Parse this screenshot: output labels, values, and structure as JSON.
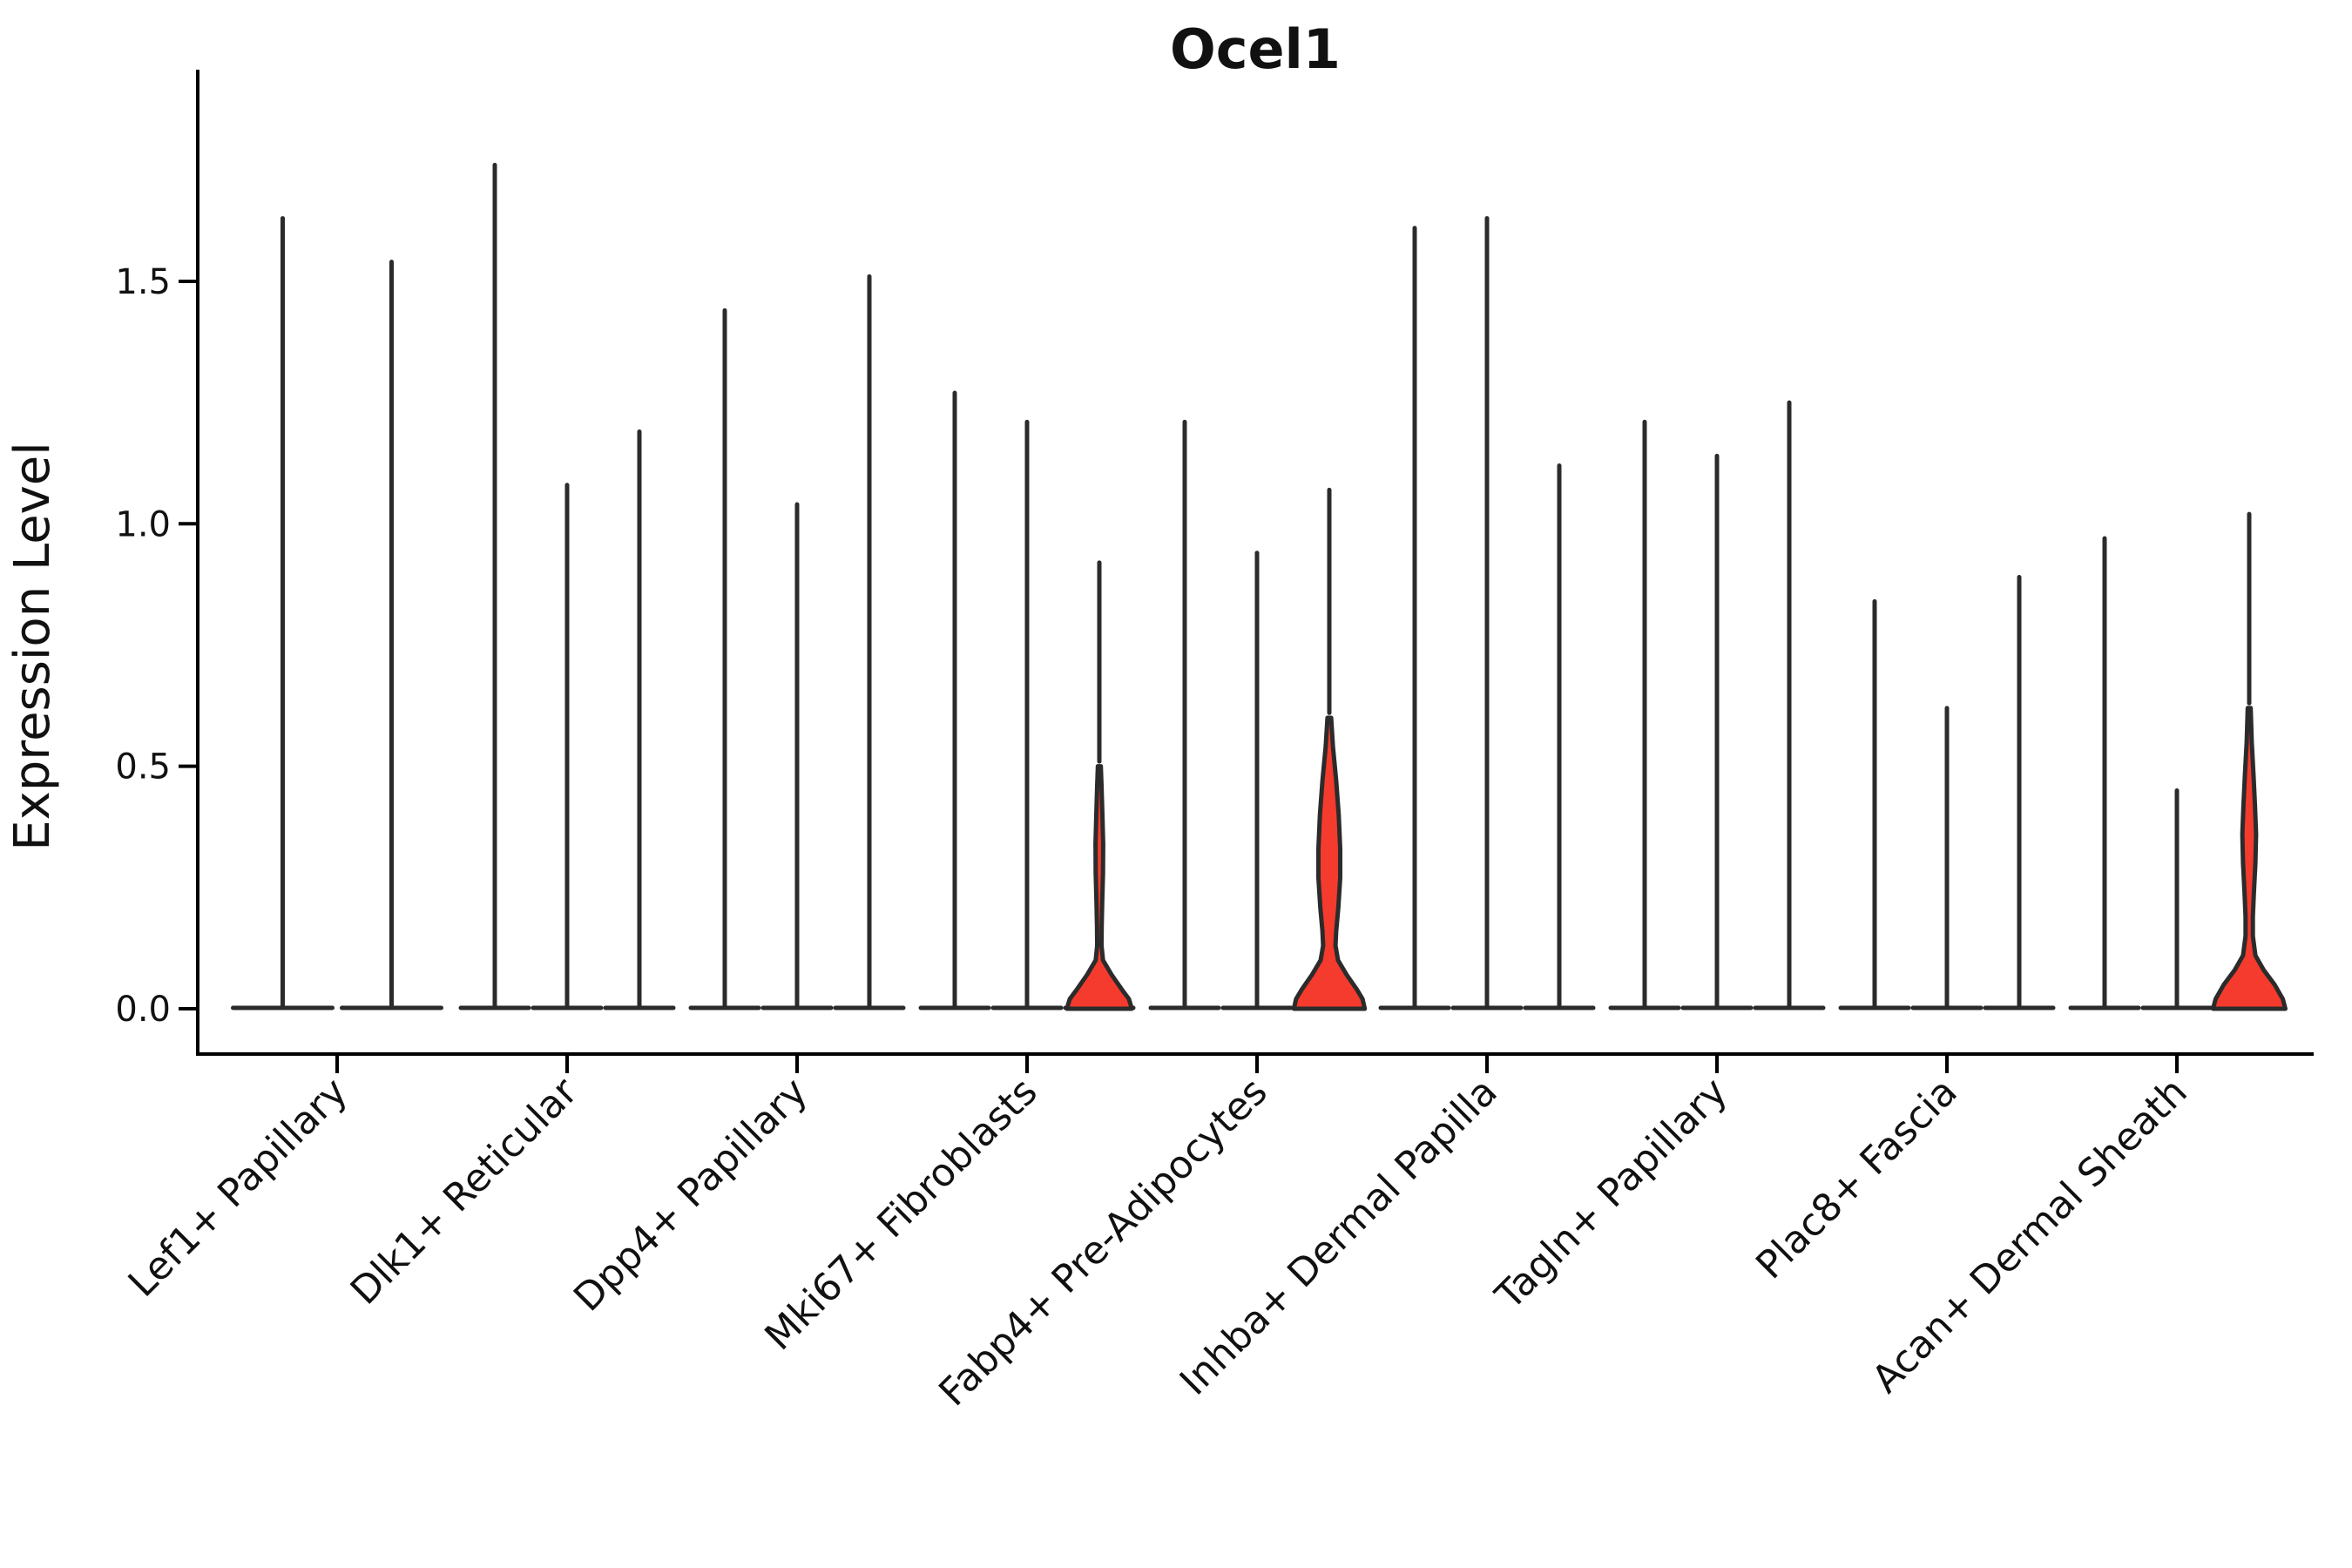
{
  "chart_data": {
    "type": "violin",
    "title": "Ocel1",
    "ylabel": "Expression Level",
    "xlabel": "",
    "legend": "none",
    "grid": false,
    "ytick_labels": [
      "0.0",
      "0.5",
      "1.0",
      "1.5"
    ],
    "ytick_values": [
      0.0,
      0.5,
      1.0,
      1.5
    ],
    "ylim": [
      -0.09,
      1.88
    ],
    "colors": {
      "violin_outline": "#2b2b2b",
      "violin_fill_highlight": "#f43b2d",
      "axis": "#000000",
      "text": "#111111"
    },
    "categories": [
      {
        "label": "Lef1+ Papillary",
        "violins": [
          {
            "max": 1.63,
            "filled": false
          },
          {
            "max": 1.54,
            "filled": false
          }
        ]
      },
      {
        "label": "Dlk1+ Reticular",
        "violins": [
          {
            "max": 1.74,
            "filled": false
          },
          {
            "max": 1.08,
            "filled": false
          },
          {
            "max": 1.19,
            "filled": false
          }
        ]
      },
      {
        "label": "Dpp4+ Papillary",
        "violins": [
          {
            "max": 1.44,
            "filled": false
          },
          {
            "max": 1.04,
            "filled": false
          },
          {
            "max": 1.51,
            "filled": false
          }
        ]
      },
      {
        "label": "Mki67+ Fibroblasts",
        "violins": [
          {
            "max": 1.27,
            "filled": false
          },
          {
            "max": 1.21,
            "filled": false
          },
          {
            "max": 0.92,
            "filled": true,
            "profile": [
              [
                0.5,
                0.04
              ],
              [
                0.46,
                0.06
              ],
              [
                0.4,
                0.085
              ],
              [
                0.34,
                0.105
              ],
              [
                0.28,
                0.1
              ],
              [
                0.22,
                0.08
              ],
              [
                0.17,
                0.065
              ],
              [
                0.13,
                0.06
              ],
              [
                0.1,
                0.1
              ],
              [
                0.07,
                0.34
              ],
              [
                0.04,
                0.62
              ],
              [
                0.02,
                0.82
              ],
              [
                0.0,
                0.9
              ]
            ]
          }
        ]
      },
      {
        "label": "Fabp4+ Pre-Adipocytes",
        "violins": [
          {
            "max": 1.21,
            "filled": false
          },
          {
            "max": 0.94,
            "filled": false
          },
          {
            "max": 1.07,
            "filled": true,
            "profile": [
              [
                0.6,
                0.05
              ],
              [
                0.54,
                0.1
              ],
              [
                0.47,
                0.19
              ],
              [
                0.4,
                0.26
              ],
              [
                0.33,
                0.3
              ],
              [
                0.27,
                0.3
              ],
              [
                0.21,
                0.25
              ],
              [
                0.16,
                0.19
              ],
              [
                0.13,
                0.17
              ],
              [
                0.1,
                0.24
              ],
              [
                0.07,
                0.48
              ],
              [
                0.04,
                0.76
              ],
              [
                0.02,
                0.92
              ],
              [
                0.0,
                0.98
              ]
            ]
          }
        ]
      },
      {
        "label": "Inhba+ Dermal Papilla",
        "violins": [
          {
            "max": 1.61,
            "filled": false
          },
          {
            "max": 1.63,
            "filled": false
          },
          {
            "max": 1.12,
            "filled": false
          }
        ]
      },
      {
        "label": "Tagln+ Papillary",
        "violins": [
          {
            "max": 1.21,
            "filled": false
          },
          {
            "max": 1.14,
            "filled": false
          },
          {
            "max": 1.25,
            "filled": false
          }
        ]
      },
      {
        "label": "Plac8+ Fascia",
        "violins": [
          {
            "max": 0.84,
            "filled": false
          },
          {
            "max": 0.62,
            "filled": false
          },
          {
            "max": 0.89,
            "filled": false
          }
        ]
      },
      {
        "label": "Acan+ Dermal Sheath",
        "violins": [
          {
            "max": 0.97,
            "filled": false
          },
          {
            "max": 0.45,
            "filled": false
          },
          {
            "max": 1.02,
            "filled": true,
            "profile": [
              [
                0.62,
                0.04
              ],
              [
                0.55,
                0.07
              ],
              [
                0.48,
                0.12
              ],
              [
                0.42,
                0.16
              ],
              [
                0.36,
                0.19
              ],
              [
                0.3,
                0.17
              ],
              [
                0.24,
                0.13
              ],
              [
                0.19,
                0.1
              ],
              [
                0.15,
                0.1
              ],
              [
                0.11,
                0.17
              ],
              [
                0.08,
                0.4
              ],
              [
                0.05,
                0.7
              ],
              [
                0.02,
                0.93
              ],
              [
                0.0,
                1.0
              ]
            ]
          }
        ]
      }
    ]
  }
}
